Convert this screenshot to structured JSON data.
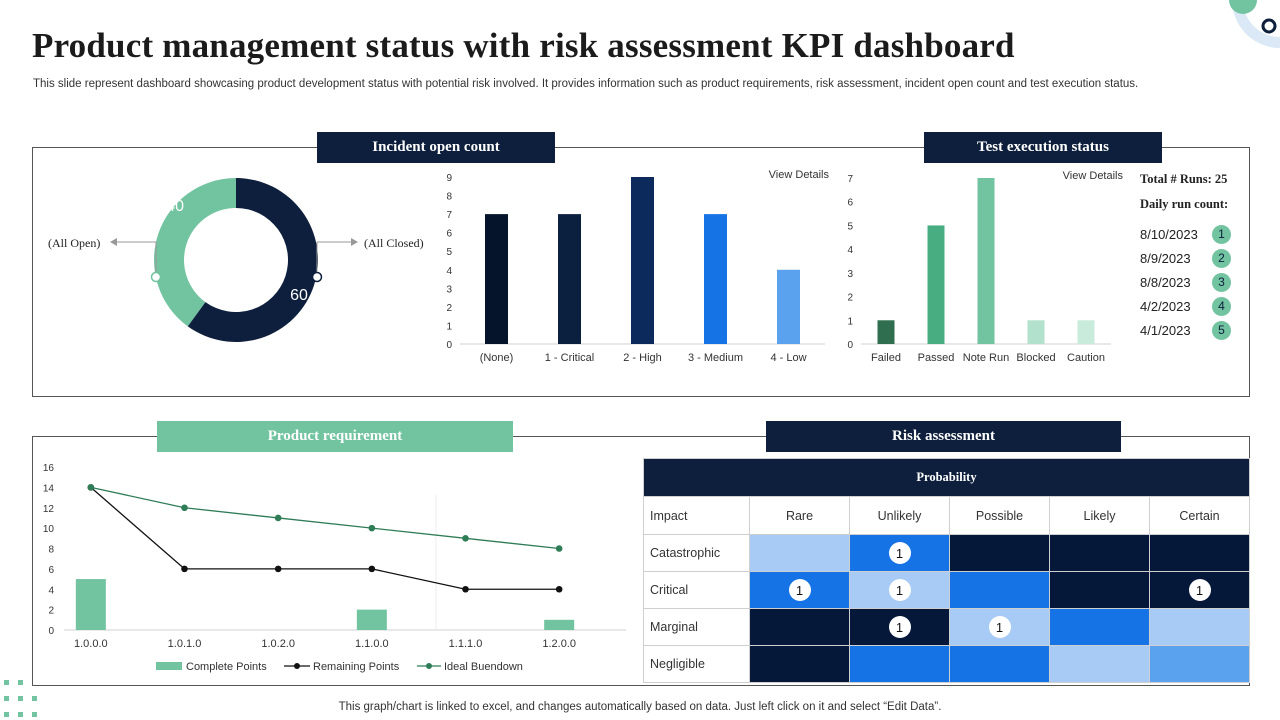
{
  "title": "Product management status with risk assessment KPI dashboard",
  "subtitle": "This slide represent dashboard showcasing product development status with potential risk involved. It provides information such as product requirements, risk assessment, incident open count and test execution status.",
  "footnote": "This graph/chart is linked to excel,  and changes automatically based on data. Just left click on it and select “Edit Data”.",
  "colors": {
    "navy": "#0d1f3c",
    "green": "#72c3a0",
    "dark_green": "#2f7d57",
    "blue": "#1673e6",
    "light_blue": "#a8cbf5",
    "mid_blue": "#5aa2ee"
  },
  "panels": {
    "incident_label": "Incident  open count",
    "test_label": "Test execution status",
    "product_label": "Product  requirement",
    "risk_label": "Risk assessment",
    "view_details": "View Details"
  },
  "test_runs": {
    "total_label": "Total  # Runs: 25",
    "daily_label": "Daily run count:",
    "rows": [
      {
        "date": "8/10/2023",
        "count": "1"
      },
      {
        "date": "8/9/2023",
        "count": "2"
      },
      {
        "date": "8/8/2023",
        "count": "3"
      },
      {
        "date": "4/2/2023",
        "count": "4"
      },
      {
        "date": "4/1/2023",
        "count": "5"
      }
    ]
  },
  "risk": {
    "header": "Probability",
    "impact_label": "Impact",
    "columns": [
      "Rare",
      "Unlikely",
      "Possible",
      "Likely",
      "Certain"
    ],
    "rows": [
      {
        "label": "Catastrophic",
        "cells": [
          {
            "shade": "light",
            "v": ""
          },
          {
            "shade": "blue",
            "v": "1"
          },
          {
            "shade": "navy",
            "v": ""
          },
          {
            "shade": "navy",
            "v": ""
          },
          {
            "shade": "navy",
            "v": ""
          }
        ]
      },
      {
        "label": "Critical",
        "cells": [
          {
            "shade": "blue",
            "v": "1"
          },
          {
            "shade": "light",
            "v": "1"
          },
          {
            "shade": "blue",
            "v": ""
          },
          {
            "shade": "navy",
            "v": ""
          },
          {
            "shade": "navy",
            "v": "1"
          }
        ]
      },
      {
        "label": "Marginal",
        "cells": [
          {
            "shade": "navy",
            "v": ""
          },
          {
            "shade": "navy",
            "v": "1"
          },
          {
            "shade": "light",
            "v": "1"
          },
          {
            "shade": "blue",
            "v": ""
          },
          {
            "shade": "light",
            "v": ""
          }
        ]
      },
      {
        "label": "Negligible",
        "cells": [
          {
            "shade": "navy",
            "v": ""
          },
          {
            "shade": "blue",
            "v": ""
          },
          {
            "shade": "blue",
            "v": ""
          },
          {
            "shade": "light",
            "v": ""
          },
          {
            "shade": "mid",
            "v": ""
          }
        ]
      }
    ]
  },
  "chart_data": [
    {
      "id": "incident_donut",
      "type": "pie",
      "title": "Incident open count",
      "slices": [
        {
          "label": "(All Open)",
          "value": 40,
          "color": "#72c3a0"
        },
        {
          "label": "(All Closed)",
          "value": 60,
          "color": "#0d1f3c"
        }
      ]
    },
    {
      "id": "incident_bar",
      "type": "bar",
      "categories": [
        "(None)",
        "1 - Critical",
        "2 - High",
        "3 - Medium",
        "4 - Low"
      ],
      "values": [
        7,
        7,
        9,
        7,
        4
      ],
      "colors": [
        "#06142b",
        "#0b1f3e",
        "#0d2a5c",
        "#1673e6",
        "#5aa2ee"
      ],
      "ylim": [
        0,
        9
      ],
      "yticks": [
        0,
        1,
        2,
        3,
        4,
        5,
        6,
        7,
        8,
        9
      ]
    },
    {
      "id": "test_bar",
      "type": "bar",
      "categories": [
        "Failed",
        "Passed",
        "Note Run",
        "Blocked",
        "Caution"
      ],
      "values": [
        1,
        5,
        7,
        1,
        1
      ],
      "colors": [
        "#2f6e4e",
        "#48ad80",
        "#72c3a0",
        "#b2e2cd",
        "#c9ebdc"
      ],
      "ylim": [
        0,
        7
      ],
      "yticks": [
        0,
        1,
        2,
        3,
        4,
        5,
        6,
        7
      ]
    },
    {
      "id": "product_requirement",
      "type": "line",
      "categories": [
        "1.0.0.0",
        "1.0.1.0",
        "1.0.2.0",
        "1.1.0.0",
        "1.1.1.0",
        "1.2.0.0"
      ],
      "ylim": [
        0,
        16
      ],
      "yticks": [
        0,
        2,
        4,
        6,
        8,
        10,
        12,
        14,
        16
      ],
      "series": [
        {
          "name": "Complete Points",
          "kind": "bar",
          "color": "#72c3a0",
          "values": [
            5,
            null,
            null,
            2,
            null,
            1
          ]
        },
        {
          "name": "Remaining Points",
          "kind": "line",
          "color": "#111111",
          "values": [
            14,
            6,
            6,
            6,
            4,
            4
          ]
        },
        {
          "name": "Ideal Buendown",
          "kind": "line",
          "color": "#2f7d57",
          "values": [
            14,
            12,
            11,
            10,
            9,
            8
          ]
        }
      ]
    }
  ]
}
